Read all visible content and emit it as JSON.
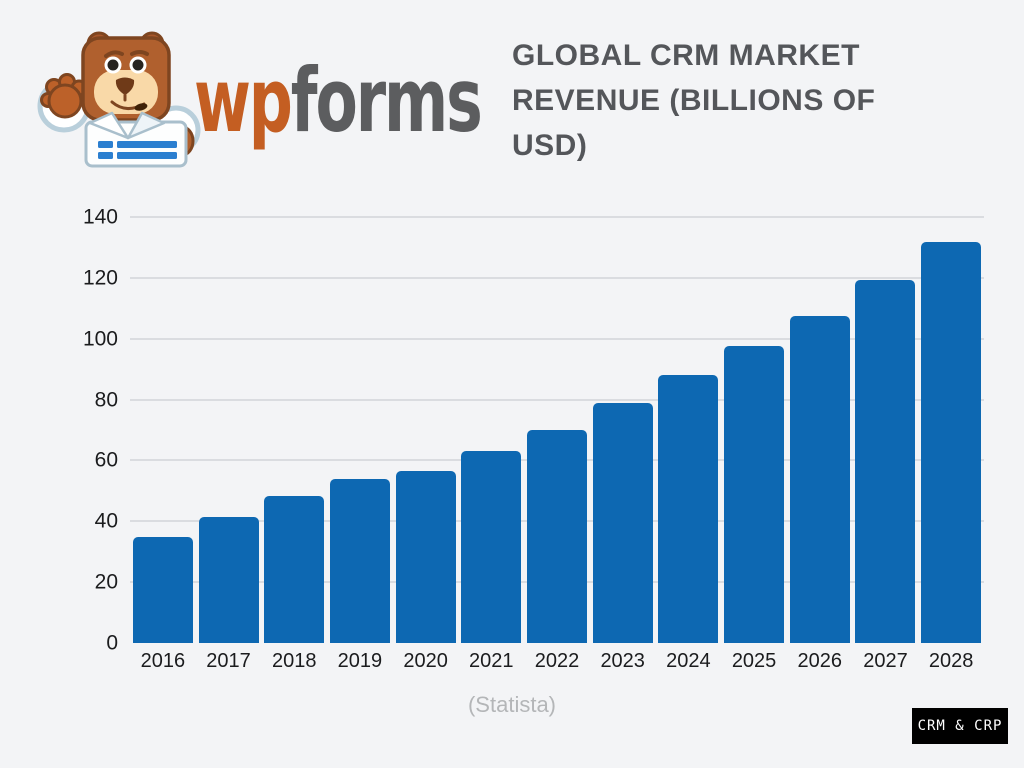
{
  "logo": {
    "wordmark": {
      "prefix": "wp",
      "suffix": "forms"
    },
    "mascot": "wpforms-bear-holding-form",
    "colors": {
      "wp": "#c45e22",
      "forms": "#5c5d5f"
    }
  },
  "title": {
    "text": "GLOBAL CRM MARKET REVENUE (BILLIONS OF USD)",
    "lines": [
      "GLOBAL CRM MARKET",
      "REVENUE (BILLIONS OF",
      "USD)"
    ],
    "color": "#54565a"
  },
  "source": {
    "text": "(Statista)"
  },
  "badge": {
    "text": "CRM & CRP",
    "background": "#000000",
    "text_color": "#ffffff"
  },
  "chart_data": {
    "type": "bar",
    "title": "GLOBAL CRM MARKET REVENUE (BILLIONS OF USD)",
    "categories": [
      "2016",
      "2017",
      "2018",
      "2019",
      "2020",
      "2021",
      "2022",
      "2023",
      "2024",
      "2025",
      "2026",
      "2027",
      "2028"
    ],
    "values": [
      34.8,
      41.5,
      48.2,
      53.9,
      56.6,
      63.0,
      69.9,
      79.0,
      88.0,
      97.7,
      107.6,
      119.4,
      131.9
    ],
    "xlabel": "",
    "ylabel": "",
    "ylim": [
      0,
      140
    ],
    "yticks": [
      0,
      20,
      40,
      60,
      80,
      100,
      120,
      140
    ],
    "grid": true,
    "legend": false,
    "bar_color": "#0d68b2",
    "gridline_color": "#dadce0",
    "source": "(Statista)"
  }
}
